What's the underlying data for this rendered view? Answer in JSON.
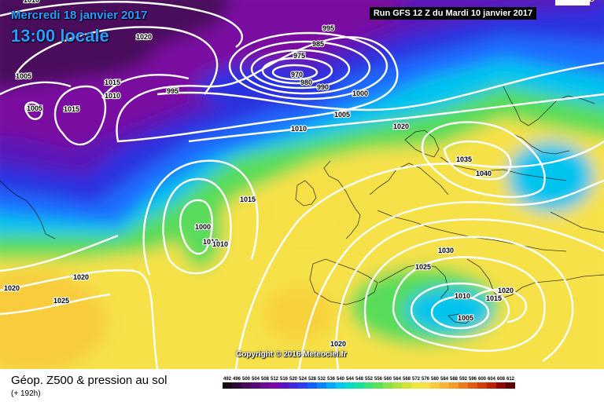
{
  "header": {
    "date": "Mercredi 18 janvier 2017",
    "local_time": "13:00 locale",
    "run": "Run GFS 12 Z du Mardi 10 janvier 2017"
  },
  "footer": {
    "title": "Géop. Z500 & pression au sol",
    "lead": "(+ 192h)",
    "copyright": "Copyright © 2016 Meteociel.fr"
  },
  "isobar_labels": [
    "1010",
    "1020",
    "1005",
    "1015",
    "1010",
    "995",
    "995",
    "985",
    "975",
    "970",
    "980",
    "990",
    "1000",
    "1005",
    "1010",
    "1005",
    "1015",
    "1020",
    "1035",
    "1040",
    "1015",
    "1000",
    "1010",
    "1010",
    "1030",
    "1025",
    "1010",
    "1015",
    "1020",
    "1005",
    "1020",
    "1020",
    "1020",
    "1025",
    "1020"
  ],
  "legend": {
    "values": [
      "492",
      "496",
      "500",
      "504",
      "508",
      "512",
      "516",
      "520",
      "524",
      "528",
      "532",
      "536",
      "540",
      "544",
      "548",
      "552",
      "556",
      "560",
      "564",
      "568",
      "572",
      "576",
      "580",
      "584",
      "588",
      "592",
      "596",
      "600",
      "604",
      "608",
      "612"
    ],
    "colors": [
      "#140a14",
      "#2c0a38",
      "#4a0a5c",
      "#5a0a78",
      "#6a0a96",
      "#7a0aaa",
      "#5a14c4",
      "#4428dc",
      "#2a40f0",
      "#1460ff",
      "#0a84ff",
      "#00aaff",
      "#00c8f0",
      "#00dcc8",
      "#14e0a0",
      "#3ce478",
      "#5ce05a",
      "#88e24a",
      "#aee23c",
      "#d2e436",
      "#eee63c",
      "#f8e046",
      "#f8cc3c",
      "#f8b432",
      "#f89c28",
      "#f07a1e",
      "#e45a14",
      "#d43c0a",
      "#bc2200",
      "#8c0a00",
      "#5a0000"
    ]
  }
}
